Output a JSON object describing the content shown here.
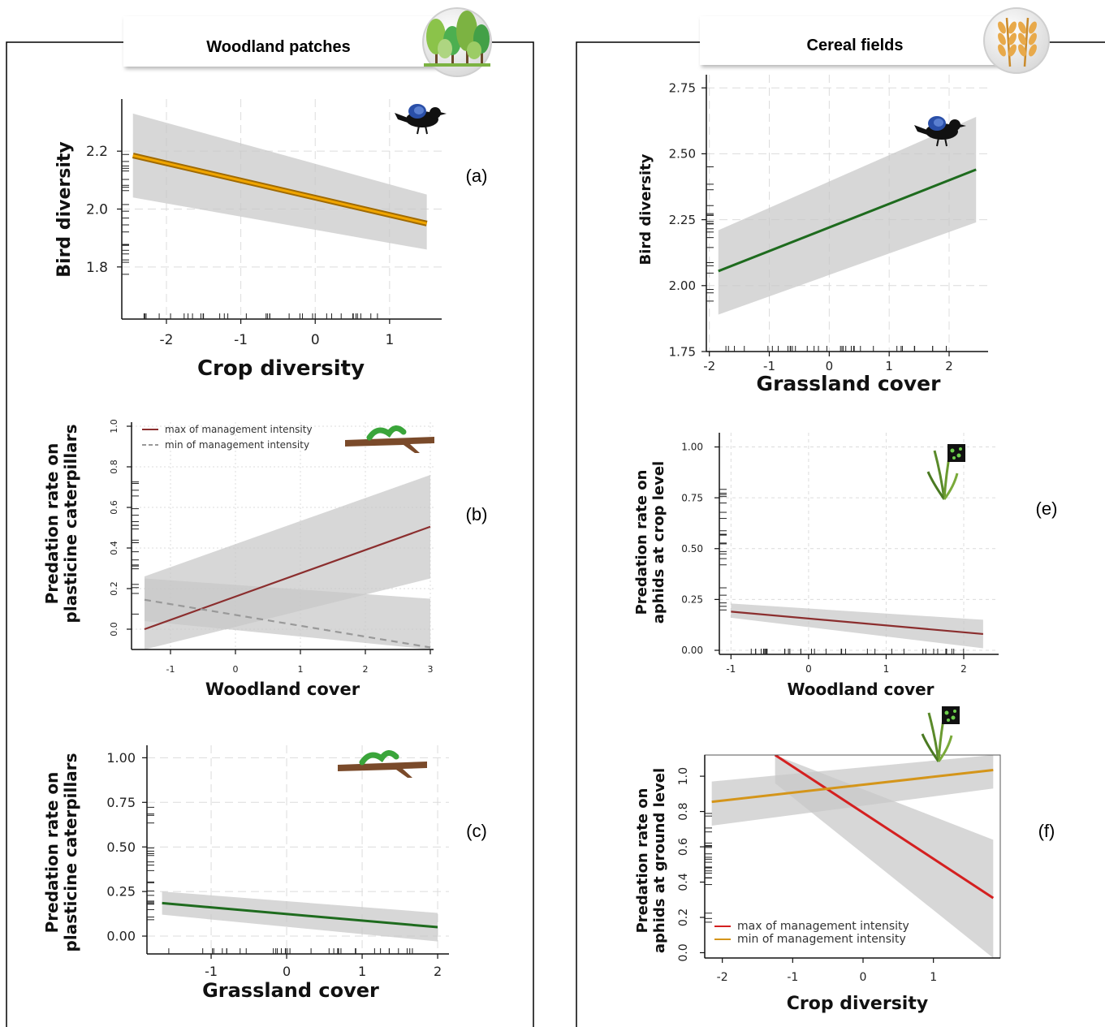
{
  "sections": {
    "left": {
      "title": "Woodland patches"
    },
    "right": {
      "title": "Cereal fields"
    }
  },
  "colors": {
    "ribbon": "#c8c8c8",
    "orange": "#f0a500",
    "dark_red": "#8b2e2e",
    "grey_dash": "#999999",
    "dark_green": "#1e6b1e",
    "red": "#d42020",
    "gold": "#d4951a"
  },
  "chart_data": [
    {
      "id": "a",
      "panel_label": "(a)",
      "type": "line",
      "xlabel": "Crop diversity",
      "ylabel": "Bird diversity",
      "xlim": [
        -2.6,
        1.7
      ],
      "ylim": [
        1.62,
        2.38
      ],
      "xticks": [
        -2,
        -1,
        0,
        1
      ],
      "xtick_labels": [
        "-2",
        "-1",
        "0",
        "1"
      ],
      "yticks": [
        1.8,
        2.0,
        2.2
      ],
      "ytick_labels": [
        "1.8",
        "2.0",
        "2.2"
      ],
      "grid": true,
      "icon": "bird-icon",
      "series": [
        {
          "x": [
            -2.45,
            1.5
          ],
          "y": [
            2.185,
            1.95
          ],
          "lower": [
            2.04,
            1.86
          ],
          "upper": [
            2.33,
            2.05
          ],
          "color": "orange",
          "dash": false
        }
      ]
    },
    {
      "id": "b",
      "panel_label": "(b)",
      "type": "line",
      "xlabel": "Woodland cover",
      "ylabel": "Predation rate on\nplasticine caterpillars",
      "xlim": [
        -1.6,
        3.05
      ],
      "ylim": [
        -0.1,
        1.02
      ],
      "xticks": [
        -1,
        0,
        1,
        2,
        3
      ],
      "xtick_labels": [
        "-1",
        "0",
        "1",
        "2",
        "3"
      ],
      "yticks": [
        0.0,
        0.2,
        0.4,
        0.6,
        0.8,
        1.0
      ],
      "ytick_labels": [
        "0.0",
        "0.2",
        "0.4",
        "0.6",
        "0.8",
        "1.0"
      ],
      "grid": true,
      "icon": "caterpillar-on-branch-icon",
      "legend_position": "top-left",
      "series": [
        {
          "name": "max of management intensity",
          "x": [
            -1.4,
            3.0
          ],
          "y": [
            0.0,
            0.505
          ],
          "lower": [
            -0.1,
            0.25
          ],
          "upper": [
            0.26,
            0.76
          ],
          "color": "dark_red",
          "dash": false
        },
        {
          "name": "min of management intensity",
          "x": [
            -1.4,
            3.0
          ],
          "y": [
            0.145,
            -0.09
          ],
          "lower": [
            0.04,
            -0.1
          ],
          "upper": [
            0.25,
            0.15
          ],
          "color": "grey_dash",
          "dash": true
        }
      ]
    },
    {
      "id": "c",
      "panel_label": "(c)",
      "type": "line",
      "xlabel": "Grassland cover",
      "ylabel": "Predation rate on\nplasticine caterpillars",
      "xlim": [
        -1.85,
        2.15
      ],
      "ylim": [
        -0.1,
        1.07
      ],
      "xticks": [
        -1,
        0,
        1,
        2
      ],
      "xtick_labels": [
        "-1",
        "0",
        "1",
        "2"
      ],
      "yticks": [
        0.0,
        0.25,
        0.5,
        0.75,
        1.0
      ],
      "ytick_labels": [
        "0.00",
        "0.25",
        "0.50",
        "0.75",
        "1.00"
      ],
      "grid": true,
      "icon": "caterpillar-on-branch-icon",
      "series": [
        {
          "x": [
            -1.65,
            2.0
          ],
          "y": [
            0.185,
            0.05
          ],
          "lower": [
            0.12,
            -0.03
          ],
          "upper": [
            0.25,
            0.13
          ],
          "color": "dark_green",
          "dash": false
        }
      ]
    },
    {
      "id": "d",
      "panel_label": "",
      "type": "line",
      "xlabel": "Grassland cover",
      "ylabel": "Bird diversity",
      "xlim": [
        -2.05,
        2.65
      ],
      "ylim": [
        1.75,
        2.8
      ],
      "xticks": [
        -2,
        -1,
        0,
        1,
        2
      ],
      "xtick_labels": [
        "-2",
        "-1",
        "0",
        "1",
        "2"
      ],
      "yticks": [
        1.75,
        2.0,
        2.25,
        2.5,
        2.75
      ],
      "ytick_labels": [
        "1.75",
        "2.00",
        "2.25",
        "2.50",
        "2.75"
      ],
      "grid": true,
      "icon": "bird-icon",
      "series": [
        {
          "x": [
            -1.85,
            2.45
          ],
          "y": [
            2.055,
            2.44
          ],
          "lower": [
            1.89,
            2.24
          ],
          "upper": [
            2.21,
            2.64
          ],
          "color": "dark_green",
          "dash": false
        }
      ]
    },
    {
      "id": "e",
      "panel_label": "(e)",
      "type": "line",
      "xlabel": "Woodland cover",
      "ylabel": "Predation rate on\naphids at crop level",
      "xlim": [
        -1.15,
        2.45
      ],
      "ylim": [
        -0.02,
        1.07
      ],
      "xticks": [
        -1,
        0,
        1,
        2
      ],
      "xtick_labels": [
        "-1",
        "0",
        "1",
        "2"
      ],
      "yticks": [
        0.0,
        0.25,
        0.5,
        0.75,
        1.0
      ],
      "ytick_labels": [
        "0.00",
        "0.25",
        "0.50",
        "0.75",
        "1.00"
      ],
      "grid": true,
      "icon": "wheat-aphid-icon",
      "series": [
        {
          "x": [
            -1.0,
            2.25
          ],
          "y": [
            0.19,
            0.08
          ],
          "lower": [
            0.16,
            0.01
          ],
          "upper": [
            0.23,
            0.15
          ],
          "color": "dark_red",
          "dash": false
        }
      ]
    },
    {
      "id": "f",
      "panel_label": "(f)",
      "type": "line",
      "xlabel": "Crop diversity",
      "ylabel": "Predation rate on\naphids at ground level",
      "xlim": [
        -2.25,
        1.95
      ],
      "ylim": [
        -0.03,
        1.12
      ],
      "xticks": [
        -2,
        -1,
        0,
        1
      ],
      "xtick_labels": [
        "-2",
        "-1",
        "0",
        "1"
      ],
      "yticks": [
        0.0,
        0.2,
        0.4,
        0.6,
        0.8,
        1.0
      ],
      "ytick_labels": [
        "0.0",
        "0.2",
        "0.4",
        "0.6",
        "0.8",
        "1.0"
      ],
      "grid": false,
      "icon": "wheat-aphid-icon",
      "legend_position": "bottom-left",
      "series": [
        {
          "name": "max of management intensity",
          "x": [
            -1.25,
            1.85
          ],
          "y": [
            1.12,
            0.31
          ],
          "lower": [
            0.96,
            -0.03
          ],
          "upper": [
            1.12,
            0.64
          ],
          "color": "red",
          "dash": false
        },
        {
          "name": "min of management intensity",
          "x": [
            -2.15,
            1.85
          ],
          "y": [
            0.855,
            1.035
          ],
          "lower": [
            0.72,
            0.93
          ],
          "upper": [
            0.97,
            1.12
          ],
          "color": "gold",
          "dash": false
        }
      ]
    }
  ]
}
